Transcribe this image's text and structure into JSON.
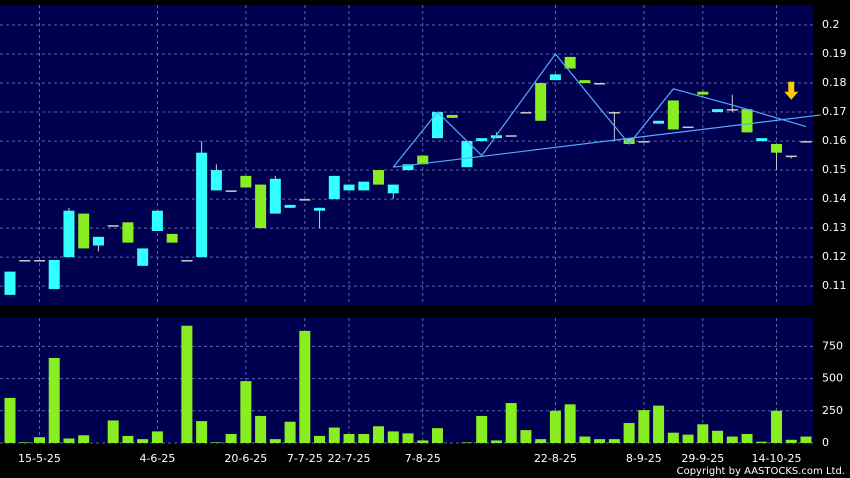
{
  "chart_data": {
    "type": "candlestick",
    "categories": [
      null,
      null,
      "15-5-25",
      null,
      null,
      null,
      null,
      null,
      null,
      null,
      "4-6-25",
      null,
      null,
      null,
      null,
      null,
      "20-6-25",
      null,
      null,
      null,
      "7-7-25",
      null,
      null,
      "22-7-25",
      null,
      null,
      null,
      null,
      "7-8-25",
      null,
      null,
      null,
      null,
      null,
      null,
      null,
      null,
      "22-8-25",
      null,
      null,
      null,
      null,
      null,
      "8-9-25",
      null,
      null,
      null,
      "29-9-25",
      null,
      null,
      null,
      null,
      "14-10-25",
      null,
      null
    ],
    "open": [
      0.107,
      0.119,
      0.119,
      0.109,
      0.12,
      0.135,
      0.124,
      0.131,
      0.132,
      0.117,
      0.129,
      0.128,
      0.119,
      0.12,
      0.143,
      0.143,
      0.148,
      0.145,
      0.135,
      0.137,
      0.14,
      0.136,
      0.14,
      0.143,
      0.143,
      0.15,
      0.142,
      0.15,
      0.155,
      0.161,
      0.169,
      0.151,
      0.16,
      0.161,
      0.162,
      0.17,
      0.18,
      0.181,
      0.189,
      0.181,
      0.18,
      0.17,
      0.161,
      0.16,
      0.166,
      0.174,
      0.165,
      0.177,
      0.17,
      0.171,
      0.171,
      0.16,
      0.159,
      0.155,
      0.16
    ],
    "high": [
      0.115,
      0.119,
      0.119,
      0.119,
      0.137,
      0.135,
      0.127,
      0.131,
      0.132,
      0.123,
      0.136,
      0.128,
      0.119,
      0.16,
      0.152,
      0.143,
      0.148,
      0.145,
      0.148,
      0.138,
      0.14,
      0.137,
      0.148,
      0.145,
      0.146,
      0.15,
      0.145,
      0.152,
      0.155,
      0.17,
      0.169,
      0.16,
      0.161,
      0.163,
      0.162,
      0.17,
      0.18,
      0.183,
      0.189,
      0.181,
      0.18,
      0.17,
      0.161,
      0.16,
      0.167,
      0.174,
      0.165,
      0.177,
      0.171,
      0.176,
      0.171,
      0.161,
      0.159,
      0.155,
      0.16
    ],
    "low": [
      0.107,
      0.119,
      0.119,
      0.109,
      0.12,
      0.123,
      0.122,
      0.131,
      0.125,
      0.117,
      0.129,
      0.125,
      0.119,
      0.12,
      0.143,
      0.143,
      0.144,
      0.13,
      0.135,
      0.137,
      0.14,
      0.13,
      0.14,
      0.143,
      0.143,
      0.145,
      0.14,
      0.15,
      0.152,
      0.161,
      0.168,
      0.151,
      0.16,
      0.161,
      0.162,
      0.17,
      0.167,
      0.181,
      0.185,
      0.18,
      0.18,
      0.16,
      0.159,
      0.16,
      0.166,
      0.164,
      0.165,
      0.176,
      0.17,
      0.17,
      0.163,
      0.16,
      0.15,
      0.154,
      0.16
    ],
    "close": [
      0.115,
      0.119,
      0.119,
      0.119,
      0.136,
      0.123,
      0.127,
      0.131,
      0.125,
      0.123,
      0.136,
      0.125,
      0.119,
      0.156,
      0.15,
      0.143,
      0.144,
      0.13,
      0.147,
      0.138,
      0.14,
      0.137,
      0.148,
      0.145,
      0.146,
      0.145,
      0.145,
      0.152,
      0.152,
      0.17,
      0.168,
      0.16,
      0.161,
      0.162,
      0.162,
      0.17,
      0.167,
      0.183,
      0.185,
      0.18,
      0.18,
      0.17,
      0.159,
      0.16,
      0.167,
      0.164,
      0.165,
      0.176,
      0.171,
      0.171,
      0.163,
      0.161,
      0.156,
      0.155,
      0.16
    ],
    "volume": [
      350,
      5,
      45,
      660,
      35,
      60,
      0,
      175,
      55,
      30,
      90,
      0,
      910,
      170,
      5,
      70,
      480,
      210,
      30,
      165,
      870,
      55,
      120,
      70,
      70,
      130,
      90,
      75,
      20,
      115,
      0,
      5,
      210,
      20,
      310,
      100,
      30,
      250,
      300,
      50,
      30,
      30,
      155,
      255,
      290,
      80,
      65,
      145,
      95,
      50,
      70,
      10,
      250,
      25,
      50
    ],
    "up_color": "#33ffff",
    "down_color": "#88ee22",
    "volume_color": "#88ee22",
    "ylim": [
      0.1035,
      0.2069
    ],
    "yticks": [
      0.11,
      0.12,
      0.13,
      0.14,
      0.15,
      0.16,
      0.17,
      0.18,
      0.19,
      0.2
    ],
    "volume_ylim": [
      0,
      970
    ],
    "volume_yticks": [
      0,
      250,
      500,
      750
    ],
    "lines": [
      {
        "color": "#55aaff",
        "x": [
          26,
          29,
          32,
          37,
          42,
          45,
          50,
          54
        ],
        "y": [
          0.151,
          0.17,
          0.155,
          0.19,
          0.159,
          0.178,
          0.171,
          0.165
        ]
      },
      {
        "color": "#55aaff",
        "x": [
          26,
          55
        ],
        "y": [
          0.151,
          0.169
        ]
      }
    ],
    "arrow": {
      "x": 53,
      "y": 0.177,
      "color": "#ffcc00"
    },
    "grid": true,
    "copyright": "Copyright by AASTOCKS.com Ltd."
  }
}
